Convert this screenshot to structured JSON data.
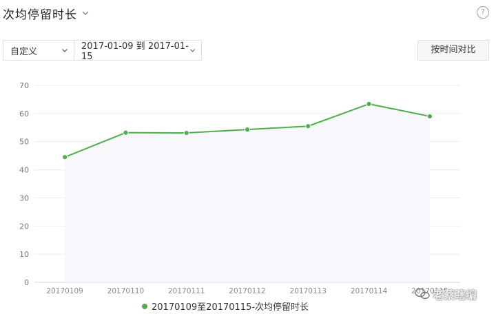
{
  "header": {
    "title": "次均停留时长",
    "help_label": "?"
  },
  "controls": {
    "range_type": "自定义",
    "date_range": "2017-01-09 到 2017-01-15",
    "compare_label": "按时间对比"
  },
  "legend": {
    "label": "20170109至20170115-次均停留时长"
  },
  "watermark": {
    "text": "老蔡瞎编"
  },
  "colors": {
    "line": "#4cae4c",
    "area": "#f7f7fc",
    "grid": "#ececec"
  },
  "chart_data": {
    "type": "line",
    "categories": [
      "20170109",
      "20170110",
      "20170111",
      "20170112",
      "20170113",
      "20170114",
      "20170115"
    ],
    "series": [
      {
        "name": "20170109至20170115-次均停留时长",
        "values": [
          44.5,
          53.2,
          53.1,
          54.3,
          55.5,
          63.4,
          59.0
        ]
      }
    ],
    "ylim": [
      0,
      70
    ],
    "yticks": [
      0,
      10,
      20,
      30,
      40,
      50,
      60,
      70
    ],
    "grid": true,
    "legend_position": "bottom"
  }
}
